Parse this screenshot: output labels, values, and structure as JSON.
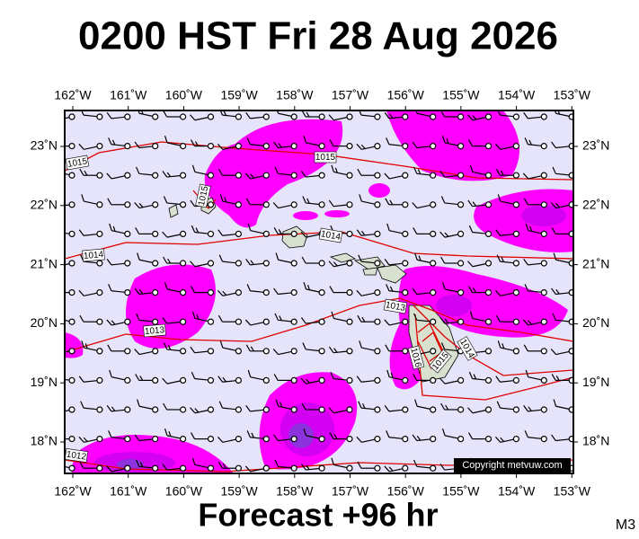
{
  "header": {
    "title": "0200 HST Fri 28 Aug 2026"
  },
  "map": {
    "lon_labels": [
      "162˚W",
      "161˚W",
      "160˚W",
      "159˚W",
      "158˚W",
      "157˚W",
      "156˚W",
      "155˚W",
      "154˚W",
      "153˚W"
    ],
    "lat_labels": [
      "23˚N",
      "22˚N",
      "21˚N",
      "20˚N",
      "19˚N",
      "18˚N"
    ],
    "isobar_labels": [
      "1015",
      "1015",
      "1015",
      "1014",
      "1014",
      "1013",
      "1013",
      "1012",
      "1016",
      "1015",
      "1014"
    ],
    "copyright": "Copyright metvuw.com"
  },
  "footer": {
    "forecast": "Forecast +96 hr",
    "code": "M3"
  }
}
